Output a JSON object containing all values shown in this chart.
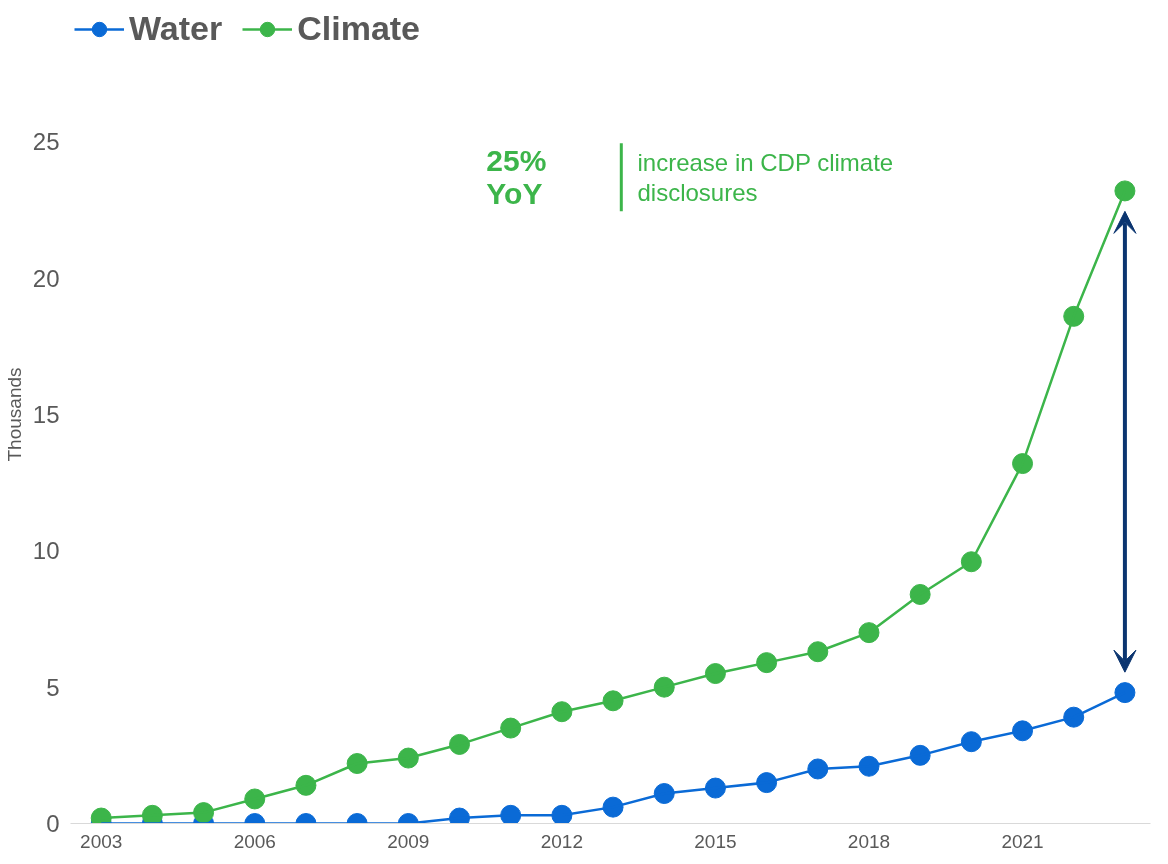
{
  "chart_data": {
    "type": "line",
    "ylabel": "Thousands",
    "x": [
      2003,
      2004,
      2005,
      2006,
      2007,
      2008,
      2009,
      2010,
      2011,
      2012,
      2013,
      2014,
      2015,
      2016,
      2017,
      2018,
      2019,
      2020,
      2021,
      2022,
      2023
    ],
    "series": [
      {
        "name": "Water",
        "color": "#0a6ad6",
        "values": [
          0,
          0,
          0,
          0,
          0,
          0,
          0,
          0.2,
          0.3,
          0.3,
          0.6,
          1.1,
          1.3,
          1.5,
          2.0,
          2.1,
          2.5,
          3.0,
          3.4,
          3.9,
          4.8
        ]
      },
      {
        "name": "Climate",
        "color": "#3cb54a",
        "values": [
          0.2,
          0.3,
          0.4,
          0.9,
          1.4,
          2.2,
          2.4,
          2.9,
          3.5,
          4.1,
          4.5,
          5.0,
          5.5,
          5.9,
          6.3,
          7.0,
          8.4,
          9.6,
          13.2,
          18.6,
          23.2
        ]
      }
    ],
    "xlim": [
      2002.4,
      2023.5
    ],
    "xticks": [
      2003,
      2006,
      2009,
      2012,
      2015,
      2018,
      2021
    ],
    "ylim": [
      0,
      25
    ],
    "yticks": [
      0,
      5,
      10,
      15,
      20,
      25
    ],
    "annotations": [
      "25% YoY",
      "increase in CDP climate disclosures"
    ],
    "grid": false,
    "legend": "top left",
    "marker": "circle",
    "line_style": "solid"
  }
}
